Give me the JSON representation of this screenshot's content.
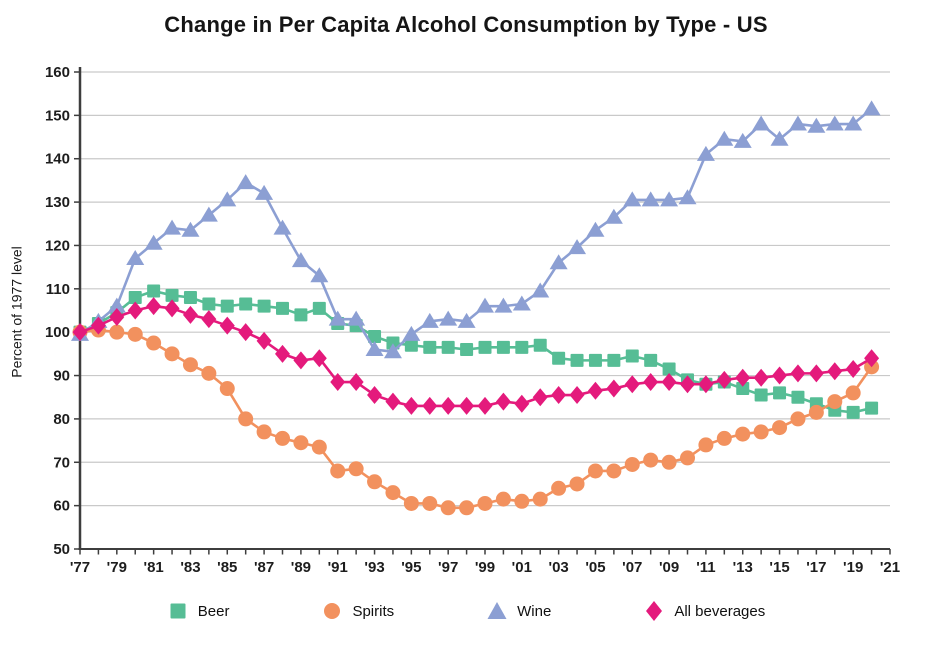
{
  "chart_data": {
    "type": "line",
    "title": "Change in Per Capita Alcohol Consumption by Type - US",
    "ylabel": "Percent of 1977 level",
    "xlabel": "",
    "ylim": [
      50,
      160
    ],
    "ytick_step": 10,
    "x_start_year": 1977,
    "x_end_year": 2021,
    "xtick_label_step": 2,
    "xtick_labels": [
      "'77",
      "'79",
      "'81",
      "'83",
      "'85",
      "'87",
      "'89",
      "'91",
      "'93",
      "'95",
      "'97",
      "'99",
      "'01",
      "'03",
      "'05",
      "'07",
      "'09",
      "'11",
      "'13",
      "'15",
      "'17",
      "'19",
      "'21"
    ],
    "grid": true,
    "grid_color": "#c9c9c9",
    "axis_color": "#3d3d3d",
    "legend_position": "bottom",
    "years": [
      1977,
      1978,
      1979,
      1980,
      1981,
      1982,
      1983,
      1984,
      1985,
      1986,
      1987,
      1988,
      1989,
      1990,
      1991,
      1992,
      1993,
      1994,
      1995,
      1996,
      1997,
      1998,
      1999,
      2000,
      2001,
      2002,
      2003,
      2004,
      2005,
      2006,
      2007,
      2008,
      2009,
      2010,
      2011,
      2012,
      2013,
      2014,
      2015,
      2016,
      2017,
      2018,
      2019,
      2020
    ],
    "series": [
      {
        "name": "Beer",
        "marker": "square",
        "color": "#56BD95",
        "values": [
          100,
          102,
          104.5,
          108,
          109.5,
          108.5,
          108,
          106.5,
          106,
          106.5,
          106,
          105.5,
          104,
          105.5,
          102,
          101.5,
          99,
          97.5,
          97,
          96.5,
          96.5,
          96,
          96.5,
          96.5,
          96.5,
          97,
          94,
          93.5,
          93.5,
          93.5,
          94.5,
          93.5,
          91.5,
          89,
          88,
          88.5,
          87,
          85.5,
          86,
          85,
          83.5,
          82,
          81.5,
          82.5
        ]
      },
      {
        "name": "Spirits",
        "marker": "circle",
        "color": "#F2915E",
        "values": [
          100,
          100.5,
          100,
          99.5,
          97.5,
          95,
          92.5,
          90.5,
          87,
          80,
          77,
          75.5,
          74.5,
          73.5,
          68,
          68.5,
          65.5,
          63,
          60.5,
          60.5,
          59.5,
          59.5,
          60.5,
          61.5,
          61,
          61.5,
          64,
          65,
          68,
          68,
          69.5,
          70.5,
          70,
          71,
          74,
          75.5,
          76.5,
          77,
          78,
          80,
          81.5,
          84,
          86,
          92
        ]
      },
      {
        "name": "Wine",
        "marker": "triangle",
        "color": "#8C9FD3",
        "values": [
          99.5,
          102.5,
          106,
          117,
          120.5,
          124,
          123.5,
          127,
          130.5,
          134.5,
          132,
          124,
          116.5,
          113,
          103,
          103,
          96,
          95.5,
          99.5,
          102.5,
          103,
          102.5,
          106,
          106,
          106.5,
          109.5,
          116,
          119.5,
          123.5,
          126.5,
          130.5,
          130.5,
          130.5,
          131,
          141,
          144.5,
          144,
          148,
          144.5,
          148,
          147.5,
          148,
          148,
          151.5
        ]
      },
      {
        "name": "All beverages",
        "marker": "diamond",
        "color": "#E41A7C",
        "values": [
          100,
          101.5,
          103.5,
          105,
          106,
          105.5,
          104,
          103,
          101.5,
          100,
          98,
          95,
          93.5,
          94,
          88.5,
          88.5,
          85.5,
          84,
          83,
          83,
          83,
          83,
          83,
          84,
          83.5,
          85,
          85.5,
          85.5,
          86.5,
          87,
          88,
          88.5,
          88.5,
          88,
          88,
          89,
          89.5,
          89.5,
          90,
          90.5,
          90.5,
          91,
          91.5,
          94
        ]
      }
    ]
  }
}
